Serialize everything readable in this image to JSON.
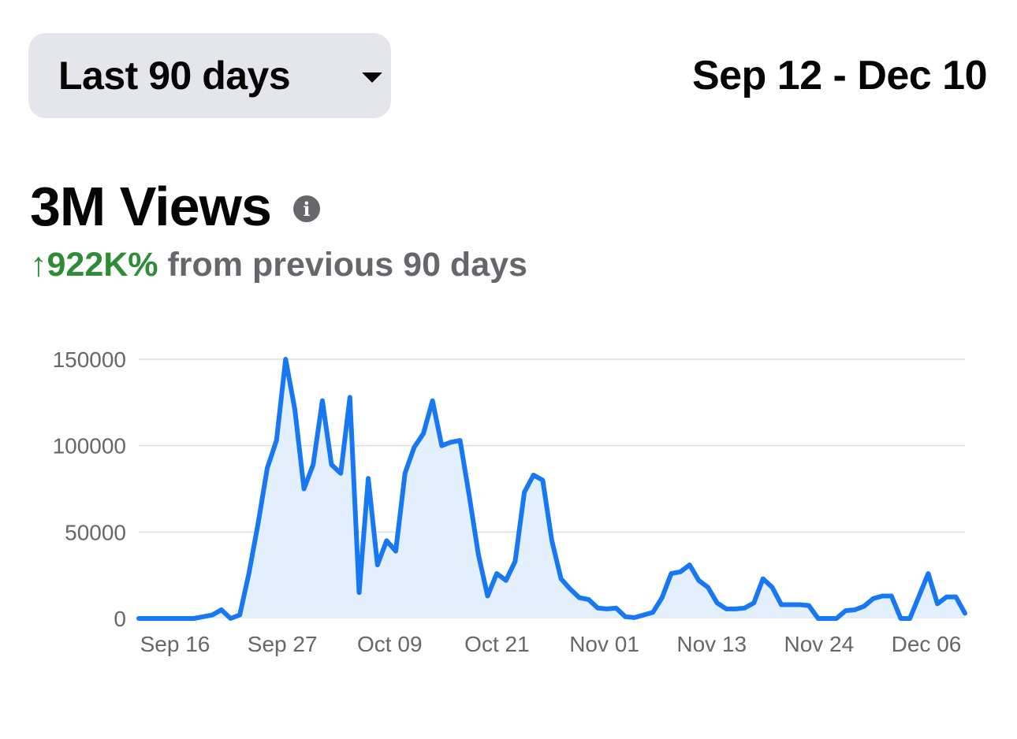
{
  "header": {
    "range_selector_label": "Last 90 days",
    "date_range": "Sep 12 - Dec 10"
  },
  "metric": {
    "title": "3M Views",
    "info_icon": "info-icon",
    "change_value": "↑922K%",
    "change_text": "from previous 90 days"
  },
  "colors": {
    "line": "#1877f2",
    "area": "#e3effc",
    "positive": "#2e8b36",
    "muted": "#65676b",
    "dropdown_bg": "#e4e6eb"
  },
  "chart_data": {
    "type": "area",
    "y_ticks": [
      0,
      50000,
      100000,
      150000
    ],
    "y_tick_labels": [
      "0",
      "50000",
      "100000",
      "150000"
    ],
    "x_tick_labels": [
      "Sep 16",
      "Sep 27",
      "Oct 09",
      "Oct 21",
      "Nov 01",
      "Nov 13",
      "Nov 24",
      "Dec 06"
    ],
    "ylim": [
      0,
      150000
    ],
    "grid": true,
    "series": [
      {
        "values": [
          0,
          0,
          0,
          0,
          0,
          0,
          0,
          1000,
          2000,
          5000,
          0,
          2000,
          26000,
          55000,
          87000,
          103000,
          150000,
          121000,
          75000,
          89000,
          126000,
          89000,
          84000,
          128000,
          15000,
          81000,
          31000,
          45000,
          39000,
          84000,
          99000,
          107000,
          126000,
          100000,
          102000,
          103000,
          71000,
          37000,
          13000,
          26000,
          22000,
          33000,
          73000,
          83000,
          80000,
          45000,
          23000,
          17000,
          12000,
          11000,
          6000,
          5500,
          6000,
          1000,
          500,
          2000,
          3500,
          12000,
          26000,
          27000,
          31000,
          22000,
          18000,
          9000,
          5500,
          5500,
          6000,
          9000,
          23000,
          18000,
          8000,
          8000,
          8000,
          7500,
          0,
          0,
          0,
          4500,
          5000,
          7000,
          11500,
          13000,
          13000,
          0,
          0,
          13000,
          26000,
          8500,
          12500,
          12500,
          3000
        ]
      }
    ]
  }
}
